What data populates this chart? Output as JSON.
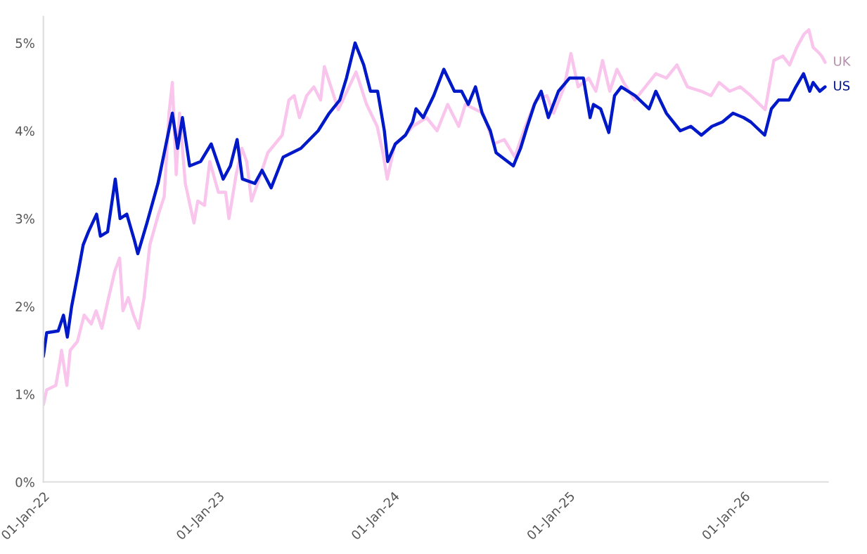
{
  "chart_data": {
    "type": "line",
    "xlim": [
      "2022-01-01",
      "2026-06-25"
    ],
    "xticks": [
      {
        "value": "2022-01-01",
        "label": "01-Jan-22"
      },
      {
        "value": "2023-01-01",
        "label": "01-Jan-23"
      },
      {
        "value": "2024-01-01",
        "label": "01-Jan-24"
      },
      {
        "value": "2025-01-01",
        "label": "01-Jan-25"
      },
      {
        "value": "2026-01-01",
        "label": "01-Jan-26"
      }
    ],
    "ylim": [
      0,
      5.3
    ],
    "yticks": [
      {
        "value": 0,
        "label": "0%"
      },
      {
        "value": 1,
        "label": "1%"
      },
      {
        "value": 2,
        "label": "2%"
      },
      {
        "value": 3,
        "label": "3%"
      },
      {
        "value": 4,
        "label": "4%"
      },
      {
        "value": 5,
        "label": "5%"
      }
    ],
    "grid": false,
    "legend": false,
    "series": [
      {
        "name": "UK",
        "color": "#f9c5ec",
        "x": [
          "2022-01-01",
          "2022-01-08",
          "2022-01-27",
          "2022-02-04",
          "2022-02-08",
          "2022-02-19",
          "2022-02-26",
          "2022-03-13",
          "2022-03-27",
          "2022-04-11",
          "2022-04-21",
          "2022-05-03",
          "2022-05-15",
          "2022-05-30",
          "2022-06-09",
          "2022-06-16",
          "2022-06-27",
          "2022-07-08",
          "2022-07-19",
          "2022-07-30",
          "2022-08-11",
          "2022-08-29",
          "2022-09-10",
          "2022-09-20",
          "2022-09-27",
          "2022-10-05",
          "2022-10-12",
          "2022-10-24",
          "2022-11-11",
          "2022-11-19",
          "2022-12-03",
          "2022-12-14",
          "2023-01-01",
          "2023-01-16",
          "2023-01-23",
          "2023-02-07",
          "2023-02-19",
          "2023-03-01",
          "2023-03-11",
          "2023-03-30",
          "2023-04-14",
          "2023-04-29",
          "2023-05-14",
          "2023-05-28",
          "2023-06-08",
          "2023-06-19",
          "2023-07-04",
          "2023-07-19",
          "2023-08-02",
          "2023-08-10",
          "2023-09-08",
          "2023-10-15",
          "2023-11-06",
          "2023-11-28",
          "2023-12-10",
          "2023-12-19",
          "2024-01-04",
          "2024-01-26",
          "2024-02-10",
          "2024-03-10",
          "2024-04-01",
          "2024-04-23",
          "2024-05-16",
          "2024-05-30",
          "2024-07-06",
          "2024-07-28",
          "2024-08-19",
          "2024-09-10",
          "2024-10-02",
          "2024-10-24",
          "2024-11-16",
          "2024-11-30",
          "2024-12-22",
          "2025-01-05",
          "2025-01-20",
          "2025-02-11",
          "2025-02-26",
          "2025-03-12",
          "2025-03-27",
          "2025-04-11",
          "2025-04-25",
          "2025-05-18",
          "2025-06-09",
          "2025-07-01",
          "2025-07-23",
          "2025-08-14",
          "2025-09-05",
          "2025-10-04",
          "2025-10-24",
          "2025-11-10",
          "2025-12-02",
          "2025-12-24",
          "2026-01-15",
          "2026-02-14",
          "2026-03-04",
          "2026-03-23",
          "2026-04-06",
          "2026-04-21",
          "2026-05-06",
          "2026-05-16",
          "2026-05-25",
          "2026-06-04",
          "2026-06-12",
          "2026-06-19"
        ],
        "values": [
          0.88,
          1.05,
          1.1,
          1.35,
          1.5,
          1.1,
          1.5,
          1.6,
          1.9,
          1.8,
          1.95,
          1.75,
          2.05,
          2.4,
          2.55,
          1.95,
          2.1,
          1.9,
          1.75,
          2.1,
          2.7,
          3.05,
          3.25,
          4.2,
          4.55,
          3.5,
          4.2,
          3.4,
          2.95,
          3.2,
          3.15,
          3.65,
          3.3,
          3.3,
          3.0,
          3.5,
          3.8,
          3.65,
          3.2,
          3.5,
          3.75,
          3.85,
          3.95,
          4.35,
          4.4,
          4.15,
          4.4,
          4.5,
          4.35,
          4.73,
          4.24,
          4.67,
          4.3,
          4.05,
          3.75,
          3.45,
          3.85,
          3.95,
          4.05,
          4.15,
          4.0,
          4.3,
          4.05,
          4.3,
          4.2,
          3.85,
          3.9,
          3.7,
          4.05,
          4.35,
          4.4,
          4.2,
          4.5,
          4.88,
          4.5,
          4.6,
          4.45,
          4.8,
          4.45,
          4.7,
          4.55,
          4.35,
          4.5,
          4.65,
          4.6,
          4.75,
          4.5,
          4.45,
          4.4,
          4.55,
          4.45,
          4.5,
          4.4,
          4.24,
          4.8,
          4.85,
          4.75,
          4.95,
          5.1,
          5.15,
          4.95,
          4.9,
          4.85,
          4.78
        ]
      },
      {
        "name": "US",
        "color": "#0019c8",
        "x": [
          "2022-01-01",
          "2022-01-08",
          "2022-02-01",
          "2022-02-12",
          "2022-02-20",
          "2022-03-01",
          "2022-03-15",
          "2022-03-25",
          "2022-04-05",
          "2022-04-22",
          "2022-04-30",
          "2022-05-15",
          "2022-05-31",
          "2022-06-10",
          "2022-06-24",
          "2022-07-10",
          "2022-07-17",
          "2022-08-05",
          "2022-08-28",
          "2022-09-12",
          "2022-09-27",
          "2022-10-08",
          "2022-10-18",
          "2022-11-02",
          "2022-11-25",
          "2022-12-17",
          "2023-01-11",
          "2023-01-26",
          "2023-02-09",
          "2023-02-20",
          "2023-03-18",
          "2023-04-02",
          "2023-04-21",
          "2023-05-16",
          "2023-06-22",
          "2023-07-28",
          "2023-08-20",
          "2023-09-11",
          "2023-09-25",
          "2023-10-13",
          "2023-10-31",
          "2023-11-14",
          "2023-11-29",
          "2023-12-13",
          "2023-12-20",
          "2024-01-05",
          "2024-01-26",
          "2024-02-10",
          "2024-02-17",
          "2024-03-03",
          "2024-03-25",
          "2024-04-15",
          "2024-05-07",
          "2024-05-22",
          "2024-06-05",
          "2024-06-20",
          "2024-07-04",
          "2024-07-21",
          "2024-08-02",
          "2024-09-07",
          "2024-09-22",
          "2024-10-06",
          "2024-10-21",
          "2024-11-04",
          "2024-11-19",
          "2024-12-10",
          "2025-01-02",
          "2025-01-31",
          "2025-02-14",
          "2025-02-21",
          "2025-03-08",
          "2025-03-25",
          "2025-04-06",
          "2025-04-20",
          "2025-05-19",
          "2025-06-17",
          "2025-07-01",
          "2025-07-23",
          "2025-08-21",
          "2025-09-12",
          "2025-10-04",
          "2025-10-26",
          "2025-11-17",
          "2025-12-09",
          "2025-12-31",
          "2026-01-15",
          "2026-02-13",
          "2026-02-27",
          "2026-03-14",
          "2026-04-05",
          "2026-04-19",
          "2026-05-05",
          "2026-05-18",
          "2026-05-25",
          "2026-06-08",
          "2026-06-19"
        ],
        "values": [
          1.43,
          1.7,
          1.72,
          1.9,
          1.65,
          2.0,
          2.4,
          2.7,
          2.85,
          3.05,
          2.8,
          2.85,
          3.45,
          3.0,
          3.05,
          2.75,
          2.6,
          2.95,
          3.4,
          3.8,
          4.2,
          3.8,
          4.15,
          3.6,
          3.65,
          3.85,
          3.45,
          3.6,
          3.9,
          3.45,
          3.4,
          3.55,
          3.35,
          3.7,
          3.8,
          4.0,
          4.2,
          4.35,
          4.6,
          5.0,
          4.75,
          4.45,
          4.45,
          4.0,
          3.65,
          3.85,
          3.95,
          4.1,
          4.25,
          4.15,
          4.4,
          4.7,
          4.45,
          4.45,
          4.3,
          4.5,
          4.2,
          4.0,
          3.75,
          3.6,
          3.8,
          4.05,
          4.3,
          4.45,
          4.15,
          4.45,
          4.6,
          4.6,
          4.15,
          4.3,
          4.25,
          3.98,
          4.4,
          4.5,
          4.4,
          4.25,
          4.45,
          4.2,
          4.0,
          4.05,
          3.95,
          4.05,
          4.1,
          4.2,
          4.15,
          4.1,
          3.95,
          4.25,
          4.35,
          4.35,
          4.5,
          4.65,
          4.45,
          4.55,
          4.45,
          4.5
        ]
      }
    ]
  }
}
